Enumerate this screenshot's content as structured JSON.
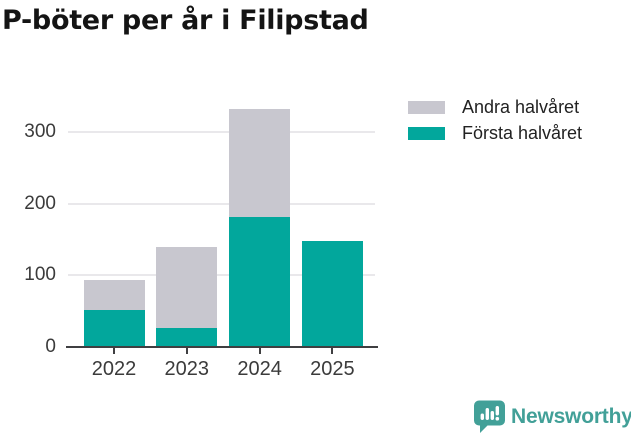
{
  "title": "P-böter per år i Filipstad",
  "colors": {
    "first_half": "#02a79c",
    "second_half": "#c8c7cf",
    "axis": "#3f3f41",
    "grid": "#e9e8eb",
    "label": "#3b3b3b",
    "title": "#141414",
    "brand": "#42a098"
  },
  "legend": {
    "items": [
      {
        "label": "Andra halvåret",
        "color": "#c8c7cf"
      },
      {
        "label": "Första halvåret",
        "color": "#02a79c"
      }
    ]
  },
  "chart_data": {
    "type": "bar",
    "stacked": true,
    "title": "P-böter per år i Filipstad",
    "categories": [
      "2022",
      "2023",
      "2024",
      "2025"
    ],
    "series": [
      {
        "name": "Första halvåret",
        "color": "#02a79c",
        "values": [
          52,
          26,
          182,
          148
        ]
      },
      {
        "name": "Andra halvåret",
        "color": "#c8c7cf",
        "values": [
          41,
          114,
          151,
          0
        ]
      }
    ],
    "totals": [
      93,
      140,
      333,
      148
    ],
    "xlabel": "",
    "ylabel": "",
    "ylim": [
      0,
      345
    ],
    "yticks": [
      0,
      100,
      200,
      300
    ],
    "grid": true,
    "legend_position": "top-right"
  },
  "footer": {
    "brand_name": "Newsworthy"
  }
}
